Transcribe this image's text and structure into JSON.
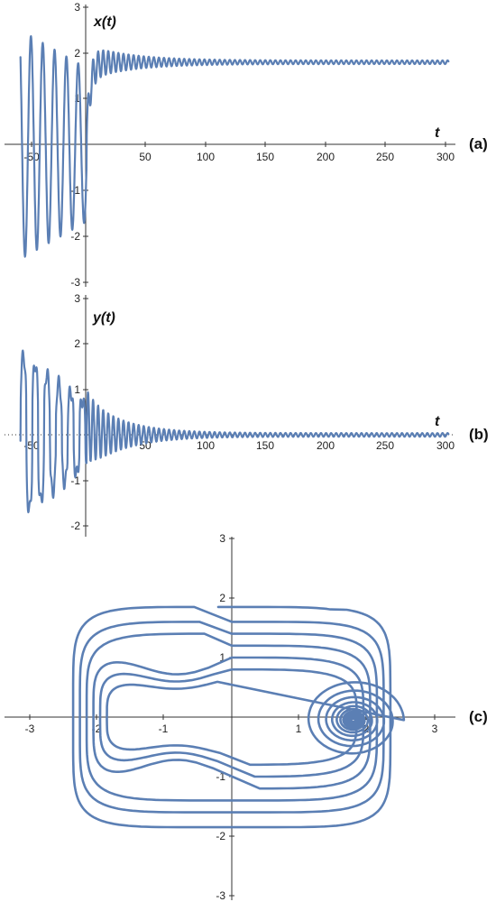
{
  "colors": {
    "series": "#5b7fb4",
    "axis": "#333333",
    "background": "#ffffff"
  },
  "chart_data": [
    {
      "type": "line",
      "panel_label": "(a)",
      "ylabel": "x(t)",
      "xlabel": "t",
      "xlim": [
        -57,
        302
      ],
      "ylim": [
        -3,
        3
      ],
      "x_ticks": [
        "-50",
        "50",
        "100",
        "150",
        "200",
        "250",
        "300"
      ],
      "y_ticks": [
        "-3",
        "-2",
        "-1",
        "1",
        "2",
        "3"
      ],
      "series": [
        {
          "x": [
            -55,
            -50,
            -45,
            -40,
            -35,
            -30,
            -25,
            -20,
            -15,
            -10,
            -5,
            0,
            5,
            10,
            20,
            30,
            50,
            100,
            200,
            300
          ],
          "y": [
            1.6,
            -2.5,
            2.5,
            -2.5,
            2.4,
            -2.4,
            2.4,
            -2.3,
            2.3,
            -2.2,
            -1.5,
            0.5,
            2.1,
            1.4,
            1.95,
            1.75,
            1.85,
            1.8,
            1.8,
            1.8
          ]
        }
      ]
    },
    {
      "type": "line",
      "panel_label": "(b)",
      "ylabel": "y(t)",
      "xlabel": "t",
      "xlim": [
        -57,
        302
      ],
      "ylim": [
        -2.2,
        3
      ],
      "x_ticks": [
        "-50",
        "50",
        "100",
        "150",
        "200",
        "250",
        "300"
      ],
      "y_ticks": [
        "-2",
        "-1",
        "1",
        "2",
        "3"
      ],
      "series": [
        {
          "x": [
            -55,
            -50,
            -40,
            -30,
            -20,
            -10,
            0,
            10,
            30,
            50,
            100,
            200,
            300
          ],
          "y": [
            -2.0,
            1.85,
            -1.7,
            1.5,
            -1.2,
            1.0,
            -0.8,
            0.7,
            0.35,
            0.15,
            0.05,
            0.03,
            0.03
          ]
        }
      ]
    },
    {
      "type": "line",
      "panel_label": "(c)",
      "xlabel": "",
      "ylabel": "",
      "xlim": [
        -3.3,
        3.3
      ],
      "ylim": [
        -3,
        3
      ],
      "x_ticks": [
        "-3",
        "-2",
        "-1",
        "1",
        "2",
        "3"
      ],
      "y_ticks": [
        "-3",
        "-2",
        "-1",
        "1",
        "2",
        "3"
      ],
      "series": [
        {
          "x": [
            1.6,
            1.0,
            -1.0,
            -1.8,
            -2.2,
            -1.9,
            -1.0,
            0.0,
            1.0,
            2.0,
            2.3,
            2.0,
            1.75
          ],
          "y": [
            -2.0,
            -1.9,
            -1.9,
            -1.9,
            0.0,
            1.8,
            1.75,
            1.75,
            1.8,
            1.7,
            0.0,
            -0.3,
            -0.05
          ]
        }
      ]
    }
  ]
}
